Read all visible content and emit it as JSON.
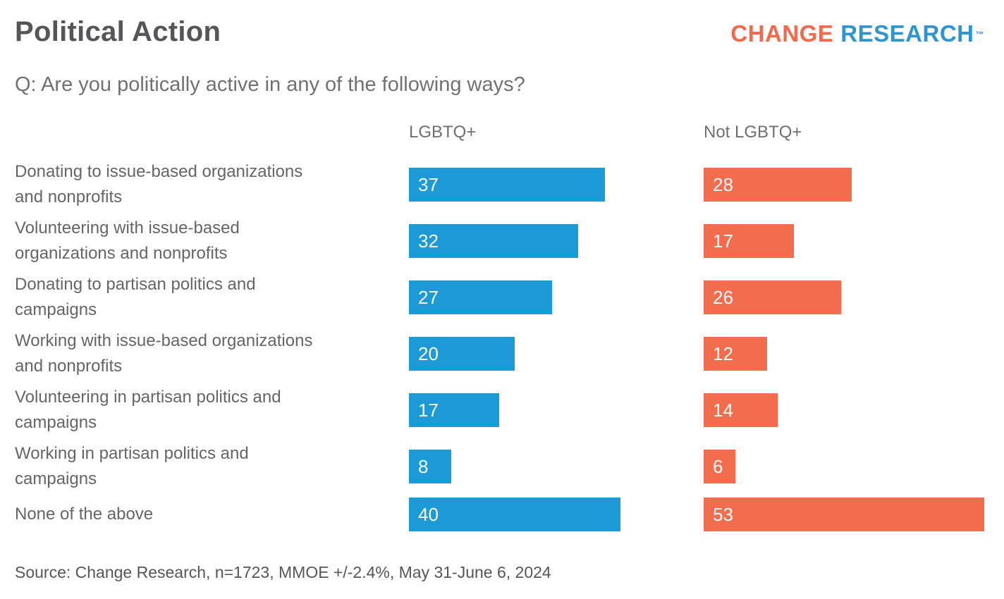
{
  "page": {
    "title": "Political Action",
    "question": "Q: Are you politically active in any of the following ways?",
    "source": "Source: Change Research, n=1723, MMOE +/-2.4%, May 31-June 6, 2024"
  },
  "logo": {
    "change": "CHANGE",
    "research": "RESEARCH",
    "tm": "™"
  },
  "colors": {
    "lgbtq_bar": "#1C9AD6",
    "not_lgbtq_bar": "#F26C4E",
    "logo_change": "#F2694B",
    "logo_research": "#2E95CF"
  },
  "chart_data": {
    "type": "bar",
    "orientation": "horizontal",
    "title": "Political Action",
    "xlabel": "",
    "ylabel": "",
    "xlim": [
      0,
      53
    ],
    "grid": false,
    "value_unit": "percent",
    "legend_position": "column-headers-top",
    "categories": [
      "Donating to issue-based organizations and nonprofits",
      "Volunteering with issue-based organizations and nonprofits",
      "Donating to partisan politics and campaigns",
      "Working with issue-based organizations and nonprofits",
      "Volunteering in partisan politics and campaigns",
      "Working in partisan politics and campaigns",
      "None of the above"
    ],
    "series": [
      {
        "name": "LGBTQ+",
        "color": "#1C9AD6",
        "values": [
          37,
          32,
          27,
          20,
          17,
          8,
          40
        ]
      },
      {
        "name": "Not LGBTQ+",
        "color": "#F26C4E",
        "values": [
          28,
          17,
          26,
          12,
          14,
          6,
          53
        ]
      }
    ]
  }
}
